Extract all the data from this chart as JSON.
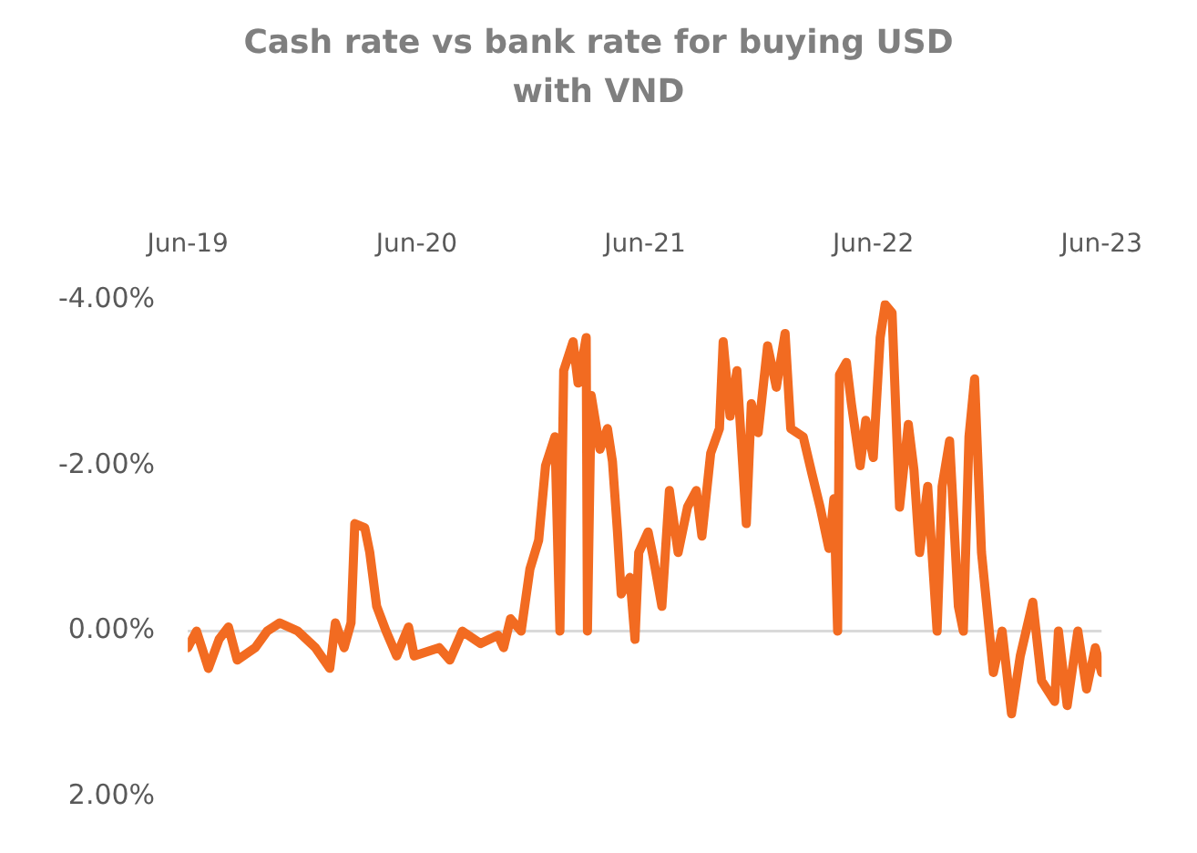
{
  "chart_data": {
    "type": "line",
    "title": "Cash rate vs bank rate for buying USD with VND",
    "x": [
      "2019-06-01",
      "2019-06-15",
      "2019-07-04",
      "2019-07-21",
      "2019-08-05",
      "2019-08-19",
      "2019-09-17",
      "2019-10-06",
      "2019-10-26",
      "2019-11-24",
      "2019-12-22",
      "2020-01-14",
      "2020-01-23",
      "2020-02-06",
      "2020-02-17",
      "2020-02-23",
      "2020-03-10",
      "2020-03-18",
      "2020-03-29",
      "2020-04-13",
      "2020-04-30",
      "2020-05-19",
      "2020-05-28",
      "2020-07-07",
      "2020-07-24",
      "2020-08-13",
      "2020-09-11",
      "2020-10-09",
      "2020-10-18",
      "2020-10-29",
      "2020-11-15",
      "2020-11-29",
      "2020-12-13",
      "2020-12-24",
      "2021-01-08",
      "2021-01-16",
      "2021-01-22",
      "2021-02-06",
      "2021-02-14",
      "2021-02-27",
      "2021-03-01",
      "2021-03-07",
      "2021-03-21",
      "2021-04-02",
      "2021-04-10",
      "2021-04-18",
      "2021-04-24",
      "2021-05-08",
      "2021-05-16",
      "2021-05-22",
      "2021-06-06",
      "2021-06-14",
      "2021-06-28",
      "2021-07-10",
      "2021-07-24",
      "2021-08-08",
      "2021-08-22",
      "2021-08-31",
      "2021-09-14",
      "2021-09-28",
      "2021-10-04",
      "2021-10-15",
      "2021-10-26",
      "2021-11-10",
      "2021-11-18",
      "2021-11-29",
      "2021-12-14",
      "2021-12-28",
      "2022-01-11",
      "2022-01-20",
      "2022-02-09",
      "2022-02-23",
      "2022-03-08",
      "2022-03-22",
      "2022-03-30",
      "2022-04-05",
      "2022-04-08",
      "2022-04-19",
      "2022-04-27",
      "2022-05-11",
      "2022-05-20",
      "2022-06-01",
      "2022-06-12",
      "2022-06-20",
      "2022-07-01",
      "2022-07-13",
      "2022-07-27",
      "2022-08-05",
      "2022-08-14",
      "2022-08-27",
      "2022-09-11",
      "2022-09-19",
      "2022-10-01",
      "2022-10-15",
      "2022-10-23",
      "2022-11-01",
      "2022-11-10",
      "2022-11-21",
      "2022-12-10",
      "2022-12-24",
      "2023-01-08",
      "2023-01-22",
      "2023-02-11",
      "2023-02-25",
      "2023-03-18",
      "2023-03-24",
      "2023-04-07",
      "2023-04-24",
      "2023-05-08",
      "2023-05-22",
      "2023-06-01"
    ],
    "series": [
      {
        "color": "#f26b21",
        "values": [
          0.2,
          0,
          0.45,
          0.1,
          -0.05,
          0.35,
          0.2,
          0,
          -0.1,
          0,
          0.2,
          0.45,
          -0.1,
          0.2,
          -0.1,
          -1.3,
          -1.25,
          -0.95,
          -0.3,
          0,
          0.3,
          -0.05,
          0.3,
          0.2,
          0.35,
          0,
          0.15,
          0.05,
          0.2,
          -0.15,
          0,
          -0.75,
          -1.1,
          -2.0,
          -2.35,
          0,
          -3.15,
          -3.5,
          -3.0,
          -3.55,
          0,
          -2.85,
          -2.2,
          -2.45,
          -2.05,
          -1.2,
          -0.45,
          -0.65,
          0.1,
          -0.95,
          -1.2,
          -0.9,
          -0.3,
          -1.7,
          -0.95,
          -1.5,
          -1.7,
          -1.15,
          -2.15,
          -2.45,
          -3.5,
          -2.6,
          -3.15,
          -1.3,
          -2.75,
          -2.4,
          -3.45,
          -2.95,
          -3.6,
          -2.45,
          -2.35,
          -1.9,
          -1.5,
          -1.0,
          -1.6,
          0,
          -3.1,
          -3.25,
          -2.75,
          -2.0,
          -2.55,
          -2.1,
          -3.55,
          -3.95,
          -3.85,
          -1.5,
          -2.5,
          -1.95,
          -0.95,
          -1.75,
          0,
          -1.75,
          -2.3,
          -0.3,
          0,
          -2.35,
          -3.05,
          -0.95,
          0.5,
          0,
          1.0,
          0.3,
          -0.35,
          0.6,
          0.85,
          0,
          0.9,
          0,
          0.7,
          0.2,
          0.5
        ]
      }
    ],
    "xlim": [
      "2019-06-01",
      "2023-06-01"
    ],
    "xticks": [
      {
        "value": "2019-06-01",
        "label": "Jun-19"
      },
      {
        "value": "2020-06-01",
        "label": "Jun-20"
      },
      {
        "value": "2021-06-01",
        "label": "Jun-21"
      },
      {
        "value": "2022-06-01",
        "label": "Jun-22"
      },
      {
        "value": "2023-06-01",
        "label": "Jun-23"
      }
    ],
    "ylim": [
      2,
      -4
    ],
    "yticks": [
      {
        "value": -4,
        "label": "-4.00%"
      },
      {
        "value": -2,
        "label": "-2.00%"
      },
      {
        "value": 0,
        "label": "0.00%"
      },
      {
        "value": 2,
        "label": "2.00%"
      }
    ],
    "ref_lines": [
      {
        "axis": "y",
        "value": 0,
        "color": "#d9d9d9"
      }
    ],
    "line_style": "solid",
    "marker": "none",
    "grid": false,
    "legend": false
  }
}
